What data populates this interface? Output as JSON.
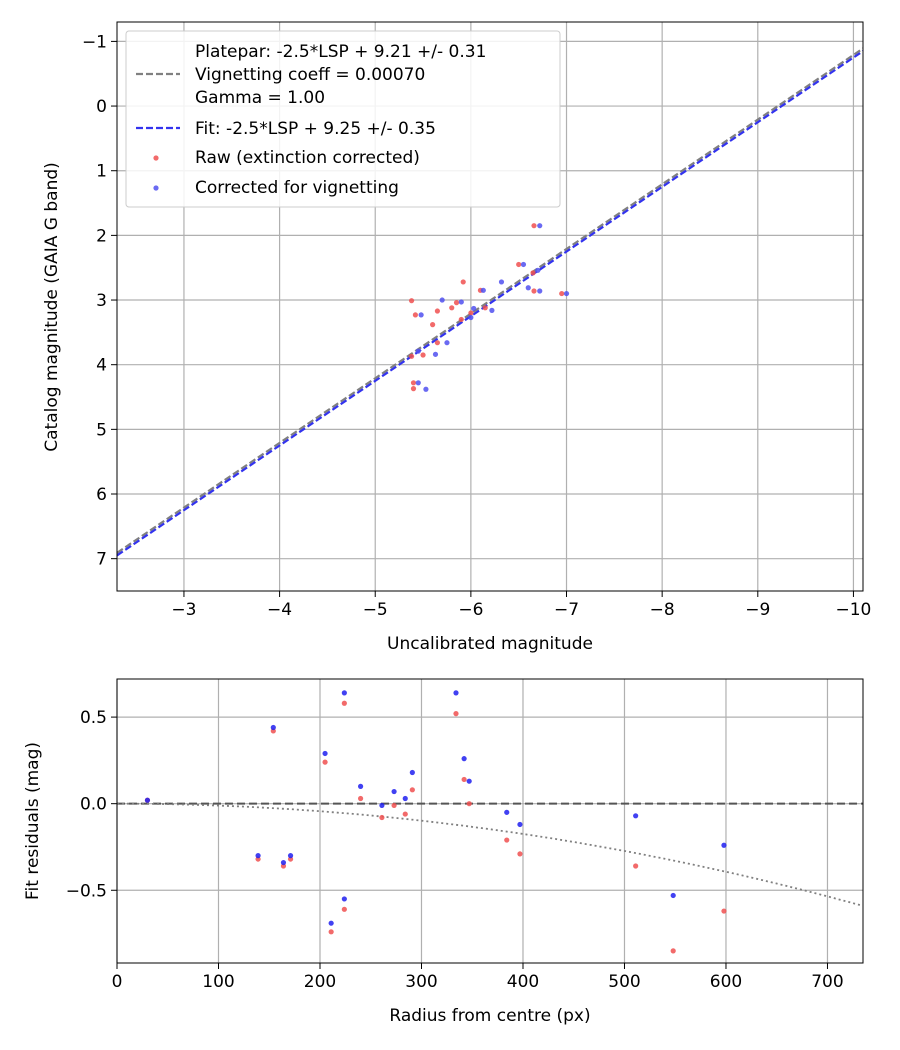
{
  "chart_data": [
    {
      "type": "scatter",
      "xlabel": "Uncalibrated magnitude",
      "ylabel": "Catalog magnitude (GAIA G band)",
      "xlim": [
        -2.3,
        -10.1
      ],
      "ylim": [
        7.5,
        -1.3
      ],
      "x_inverted": true,
      "y_inverted": true,
      "xticks": [
        -3,
        -4,
        -5,
        -6,
        -7,
        -8,
        -9,
        -10
      ],
      "yticks": [
        -1,
        0,
        1,
        2,
        3,
        4,
        5,
        6,
        7
      ],
      "xtick_labels": [
        "−3",
        "−4",
        "−5",
        "−6",
        "−7",
        "−8",
        "−9",
        "−10"
      ],
      "ytick_labels": [
        "−1",
        "0",
        "1",
        "2",
        "3",
        "4",
        "5",
        "6",
        "7"
      ],
      "grid": true,
      "legend_position": "upper-left",
      "legend": [
        {
          "label": "Platepar: -2.5*LSP + 9.21 +/- 0.31",
          "style": "none"
        },
        {
          "label": "Vignetting coeff = 0.00070",
          "style": "dashed",
          "color": "#808080"
        },
        {
          "label": "Gamma = 1.00",
          "style": "none"
        },
        {
          "label": "Fit: -2.5*LSP + 9.25 +/- 0.35",
          "style": "dashed",
          "color": "#3333ee"
        },
        {
          "label": "Raw (extinction corrected)",
          "style": "marker",
          "color": "#f05050"
        },
        {
          "label": "Corrected for vignetting",
          "style": "marker",
          "color": "#5050f0"
        }
      ],
      "lines": [
        {
          "name": "Platepar",
          "color": "#808080",
          "style": "dashed",
          "slope": 1,
          "intercept": 9.21
        },
        {
          "name": "Fit",
          "color": "#3333ee",
          "style": "dashed",
          "slope": 1,
          "intercept": 9.25
        }
      ],
      "series": [
        {
          "name": "Raw (extinction corrected)",
          "color": "#f05050",
          "points": [
            [
              -5.38,
              3.01
            ],
            [
              -5.42,
              3.23
            ],
            [
              -5.6,
              3.38
            ],
            [
              -5.65,
              3.17
            ],
            [
              -5.8,
              3.12
            ],
            [
              -5.92,
              2.72
            ],
            [
              -5.85,
              3.04
            ],
            [
              -5.9,
              3.3
            ],
            [
              -6.0,
              3.2
            ],
            [
              -6.1,
              2.85
            ],
            [
              -6.15,
              3.12
            ],
            [
              -6.5,
              2.45
            ],
            [
              -6.65,
              2.58
            ],
            [
              -6.66,
              1.85
            ],
            [
              -6.66,
              2.86
            ],
            [
              -6.95,
              2.9
            ],
            [
              -5.38,
              3.87
            ],
            [
              -5.5,
              3.85
            ],
            [
              -5.65,
              3.66
            ],
            [
              -5.4,
              4.28
            ],
            [
              -5.4,
              4.37
            ]
          ]
        },
        {
          "name": "Corrected for vignetting",
          "color": "#5050f0",
          "points": [
            [
              -5.48,
              3.23
            ],
            [
              -5.7,
              3.0
            ],
            [
              -5.75,
              3.66
            ],
            [
              -5.63,
              3.84
            ],
            [
              -5.9,
              3.03
            ],
            [
              -6.0,
              3.27
            ],
            [
              -6.03,
              3.13
            ],
            [
              -6.13,
              2.85
            ],
            [
              -6.22,
              3.16
            ],
            [
              -6.32,
              2.72
            ],
            [
              -6.55,
              2.45
            ],
            [
              -6.6,
              2.81
            ],
            [
              -6.72,
              1.85
            ],
            [
              -6.72,
              2.86
            ],
            [
              -7.0,
              2.9
            ],
            [
              -6.7,
              2.54
            ],
            [
              -5.45,
              3.79
            ],
            [
              -5.45,
              4.28
            ],
            [
              -5.53,
              4.38
            ]
          ]
        }
      ]
    },
    {
      "type": "scatter",
      "xlabel": "Radius from centre (px)",
      "ylabel": "Fit residuals (mag)",
      "xlim": [
        0,
        735
      ],
      "ylim": [
        -0.92,
        0.72
      ],
      "xticks": [
        0,
        100,
        200,
        300,
        400,
        500,
        600,
        700
      ],
      "yticks": [
        -0.5,
        0.0,
        0.5
      ],
      "xtick_labels": [
        "0",
        "100",
        "200",
        "300",
        "400",
        "500",
        "600",
        "700"
      ],
      "ytick_labels": [
        "−0.5",
        "0.0",
        "0.5"
      ],
      "grid": true,
      "reference_line": {
        "y": 0,
        "color": "#555555",
        "style": "dashed"
      },
      "vignetting_curve": {
        "color": "#808080",
        "style": "dotted",
        "x_end": 735,
        "y_end": -0.59
      },
      "series": [
        {
          "name": "Raw (extinction corrected)",
          "color": "#f05050",
          "points": [
            [
              30,
              0.02
            ],
            [
              139,
              -0.32
            ],
            [
              154,
              0.42
            ],
            [
              164,
              -0.36
            ],
            [
              171,
              -0.32
            ],
            [
              205,
              0.24
            ],
            [
              211,
              -0.74
            ],
            [
              224,
              0.58
            ],
            [
              224,
              -0.61
            ],
            [
              240,
              0.03
            ],
            [
              261,
              -0.08
            ],
            [
              273,
              -0.01
            ],
            [
              284,
              -0.06
            ],
            [
              291,
              0.08
            ],
            [
              334,
              0.52
            ],
            [
              342,
              0.14
            ],
            [
              347,
              0.0
            ],
            [
              384,
              -0.21
            ],
            [
              397,
              -0.29
            ],
            [
              511,
              -0.36
            ],
            [
              548,
              -0.85
            ],
            [
              598,
              -0.62
            ]
          ]
        },
        {
          "name": "Corrected for vignetting",
          "color": "#2020f0",
          "points": [
            [
              30,
              0.02
            ],
            [
              139,
              -0.3
            ],
            [
              154,
              0.44
            ],
            [
              164,
              -0.34
            ],
            [
              171,
              -0.3
            ],
            [
              205,
              0.29
            ],
            [
              211,
              -0.69
            ],
            [
              224,
              0.64
            ],
            [
              224,
              -0.55
            ],
            [
              240,
              0.1
            ],
            [
              261,
              -0.01
            ],
            [
              273,
              0.07
            ],
            [
              284,
              0.03
            ],
            [
              291,
              0.18
            ],
            [
              334,
              0.64
            ],
            [
              342,
              0.26
            ],
            [
              347,
              0.13
            ],
            [
              384,
              -0.05
            ],
            [
              397,
              -0.12
            ],
            [
              511,
              -0.07
            ],
            [
              548,
              -0.53
            ],
            [
              598,
              -0.24
            ]
          ]
        }
      ]
    }
  ]
}
